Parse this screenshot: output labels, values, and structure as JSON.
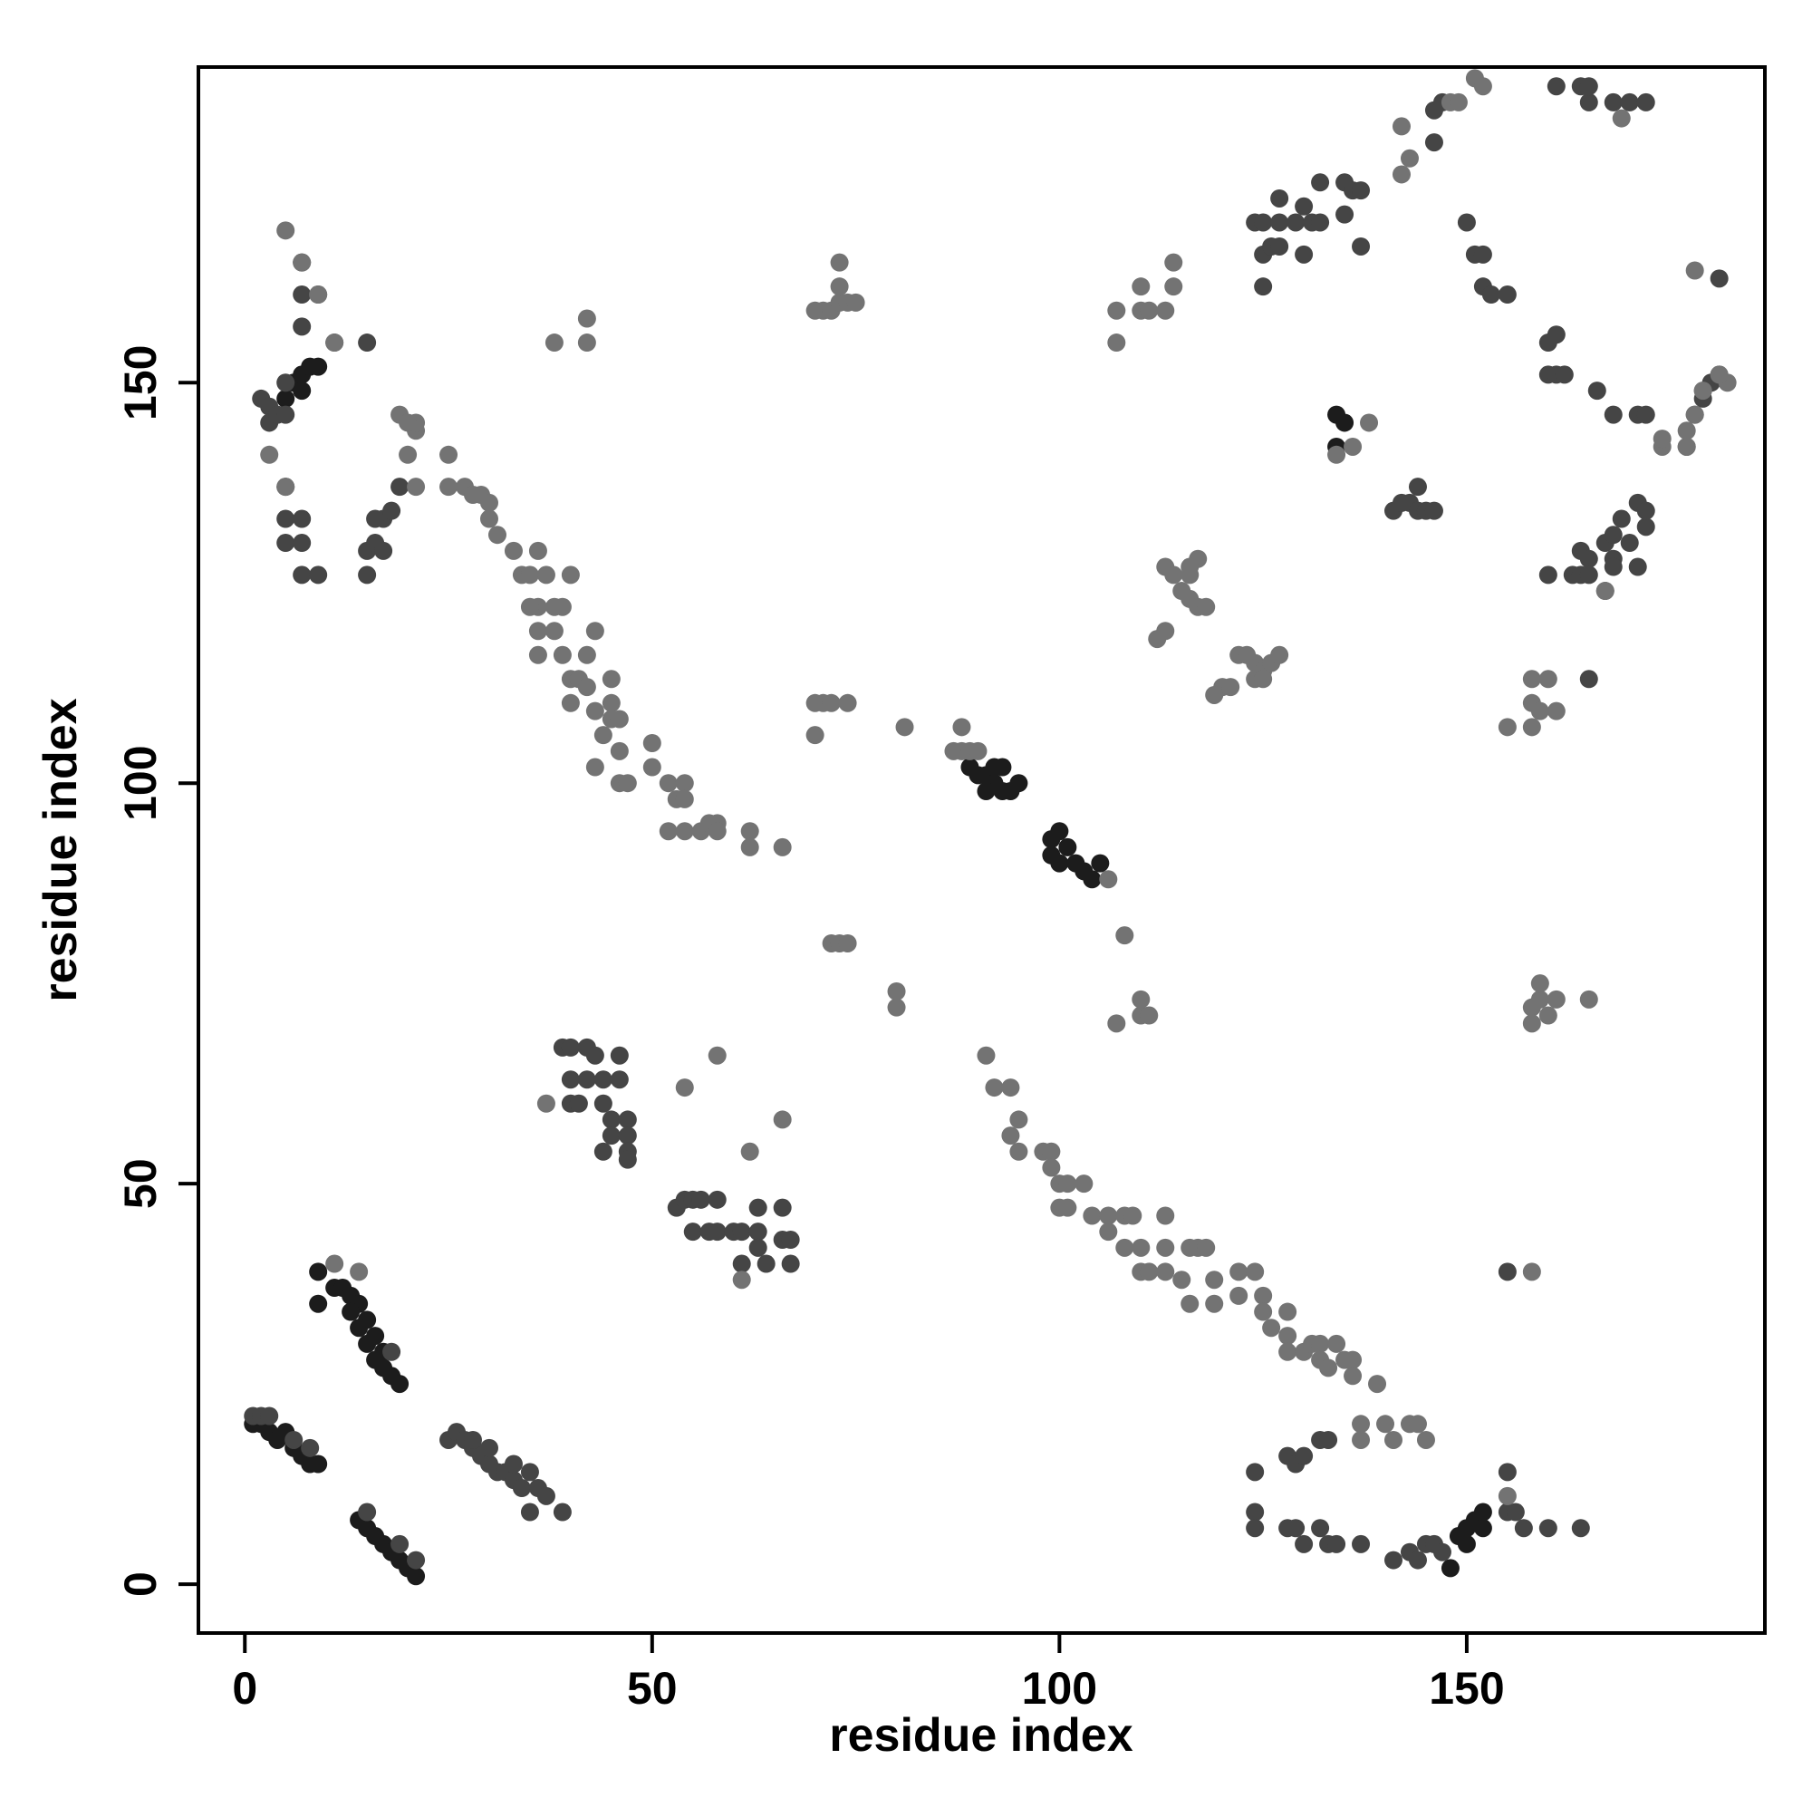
{
  "chart_data": {
    "type": "scatter",
    "x_label": "residue index",
    "y_label": "residue index",
    "xlim": [
      -5.7,
      186.6
    ],
    "ylim": [
      -6.1,
      189.4
    ],
    "xticks": [
      0,
      50,
      100,
      150
    ],
    "yticks": [
      0,
      50,
      100,
      150
    ],
    "grid": false,
    "series": [
      {
        "color": "#1c1c1c",
        "x": [
          1,
          2,
          3,
          4,
          5,
          6,
          7,
          8,
          9,
          9,
          9,
          11,
          12,
          13,
          14,
          15,
          16,
          17,
          17,
          18,
          19,
          13,
          14,
          15,
          16,
          14,
          15,
          16,
          17,
          18,
          19,
          20,
          21,
          89,
          90,
          91,
          92,
          93,
          94,
          95,
          91,
          92,
          93,
          99,
          100,
          101,
          102,
          103,
          104,
          105,
          99,
          100,
          149,
          150,
          151,
          152,
          152,
          148,
          150,
          134,
          135,
          134,
          5,
          6,
          7,
          8,
          9,
          7
        ],
        "y": [
          20,
          20,
          19,
          18,
          19,
          17,
          16,
          15,
          15,
          39,
          35,
          37,
          37,
          36,
          35,
          33,
          31,
          29,
          27,
          26,
          25,
          34,
          32,
          30,
          28,
          8,
          7,
          6,
          5,
          4,
          3,
          2,
          1,
          102,
          101,
          101,
          100,
          99,
          99,
          100,
          99,
          102,
          102,
          93,
          94,
          92,
          90,
          89,
          88,
          90,
          91,
          90,
          6,
          7,
          8,
          9,
          7,
          2,
          5,
          146,
          145,
          142,
          148,
          150,
          151,
          152,
          152,
          149
        ]
      },
      {
        "color": "#454545",
        "x": [
          1,
          2,
          3,
          6,
          8,
          18,
          21,
          15,
          19,
          25,
          26,
          27,
          28,
          29,
          30,
          31,
          32,
          33,
          34,
          35,
          36,
          37,
          28,
          30,
          33,
          35,
          39,
          39,
          40,
          42,
          43,
          46,
          40,
          42,
          44,
          46,
          40,
          41,
          44,
          45,
          47,
          45,
          47,
          44,
          47,
          47,
          53,
          54,
          55,
          56,
          58,
          55,
          58,
          60,
          61,
          63,
          63,
          63,
          64,
          66,
          66,
          67,
          67,
          61,
          57,
          124,
          128,
          129,
          130,
          132,
          133,
          124,
          124,
          128,
          129,
          130,
          132,
          133,
          134,
          137,
          141,
          143,
          144,
          145,
          146,
          147,
          155,
          156,
          155,
          157,
          160,
          164,
          155,
          2,
          3,
          3,
          4,
          5,
          5,
          7,
          7,
          7,
          5,
          5,
          7,
          5,
          7,
          7,
          9,
          15,
          15,
          16,
          17,
          18,
          19,
          16,
          17,
          9,
          11,
          15,
          124,
          125,
          125,
          125,
          126,
          127,
          127,
          127,
          129,
          130,
          130,
          131,
          132,
          132,
          135,
          135,
          136,
          137,
          137,
          141,
          142,
          143,
          144,
          144,
          145,
          146,
          146,
          146,
          147,
          150,
          151,
          152,
          152,
          153,
          155,
          160,
          160,
          161,
          161,
          162,
          160,
          163,
          164,
          164,
          165,
          165,
          165,
          167,
          167,
          168,
          168,
          168,
          168,
          169,
          170,
          171,
          172,
          172,
          171,
          171,
          172,
          161,
          164,
          165,
          165,
          168,
          170,
          172,
          177,
          178,
          179,
          179,
          180,
          181,
          181,
          166
        ],
        "y": [
          21,
          21,
          21,
          18,
          17,
          29,
          3,
          9,
          5,
          18,
          19,
          18,
          17,
          16,
          15,
          14,
          14,
          13,
          12,
          14,
          12,
          11,
          18,
          17,
          15,
          9,
          9,
          67,
          67,
          67,
          66,
          66,
          63,
          63,
          63,
          63,
          60,
          60,
          60,
          58,
          58,
          56,
          56,
          54,
          54,
          53,
          47,
          48,
          48,
          48,
          48,
          44,
          44,
          44,
          44,
          47,
          44,
          42,
          40,
          43,
          47,
          43,
          40,
          40,
          44,
          14,
          16,
          15,
          16,
          18,
          18,
          9,
          7,
          7,
          7,
          5,
          7,
          5,
          5,
          5,
          3,
          4,
          3,
          5,
          5,
          4,
          9,
          9,
          14,
          7,
          7,
          7,
          39,
          148,
          147,
          145,
          146,
          150,
          146,
          165,
          161,
          157,
          137,
          133,
          133,
          130,
          130,
          126,
          126,
          126,
          129,
          130,
          133,
          134,
          137,
          133,
          129,
          161,
          155,
          155,
          170,
          170,
          166,
          162,
          167,
          167,
          170,
          173,
          170,
          172,
          166,
          170,
          170,
          175,
          175,
          171,
          174,
          167,
          174,
          134,
          135,
          135,
          134,
          137,
          134,
          134,
          180,
          184,
          185,
          170,
          166,
          166,
          162,
          161,
          161,
          155,
          151,
          156,
          151,
          151,
          126,
          126,
          126,
          129,
          128,
          126,
          113,
          124,
          130,
          128,
          131,
          127,
          146,
          133,
          130,
          135,
          132,
          134,
          127,
          146,
          146,
          187,
          187,
          185,
          187,
          185,
          185,
          185,
          142,
          146,
          149,
          148,
          150,
          151,
          163,
          149
        ]
      },
      {
        "color": "#737373",
        "x": [
          11,
          14,
          37,
          54,
          58,
          62,
          66,
          61,
          91,
          92,
          94,
          95,
          94,
          95,
          98,
          99,
          99,
          100,
          101,
          100,
          101,
          103,
          104,
          106,
          106,
          108,
          108,
          109,
          110,
          110,
          111,
          113,
          113,
          113,
          115,
          116,
          117,
          118,
          116,
          119,
          119,
          122,
          122,
          124,
          125,
          125,
          126,
          128,
          128,
          128,
          130,
          131,
          132,
          132,
          133,
          134,
          135,
          136,
          136,
          139,
          137,
          137,
          140,
          141,
          143,
          144,
          145,
          155,
          158,
          5,
          7,
          9,
          11,
          3,
          5,
          20,
          21,
          19,
          21,
          21,
          20,
          25,
          25,
          27,
          28,
          29,
          30,
          30,
          31,
          33,
          34,
          35,
          36,
          37,
          36,
          35,
          36,
          36,
          38,
          39,
          40,
          38,
          39,
          40,
          41,
          40,
          42,
          43,
          42,
          43,
          45,
          45,
          45,
          46,
          44,
          43,
          46,
          46,
          47,
          50,
          50,
          52,
          53,
          54,
          54,
          52,
          54,
          56,
          57,
          58,
          58,
          62,
          62,
          66,
          38,
          42,
          42,
          70,
          70,
          71,
          72,
          74,
          72,
          73,
          74,
          80,
          80,
          81,
          87,
          88,
          88,
          89,
          90,
          106,
          108,
          107,
          110,
          110,
          111,
          70,
          71,
          72,
          73,
          74,
          75,
          73,
          73,
          107,
          107,
          110,
          110,
          111,
          113,
          114,
          114,
          112,
          113,
          113,
          114,
          115,
          116,
          116,
          117,
          117,
          118,
          116,
          120,
          121,
          119,
          122,
          123,
          124,
          125,
          126,
          127,
          124,
          125,
          142,
          143,
          142,
          148,
          149,
          151,
          152,
          158,
          158,
          158,
          159,
          161,
          155,
          158,
          158,
          159,
          159,
          160,
          161,
          165,
          167,
          169,
          174,
          174,
          177,
          177,
          178,
          179,
          182,
          181,
          178,
          136,
          138,
          134,
          160
        ],
        "y": [
          40,
          39,
          60,
          62,
          66,
          54,
          58,
          38,
          66,
          62,
          62,
          58,
          56,
          54,
          54,
          54,
          52,
          50,
          50,
          47,
          47,
          50,
          46,
          46,
          44,
          46,
          42,
          46,
          42,
          39,
          39,
          46,
          42,
          39,
          38,
          42,
          42,
          42,
          35,
          38,
          35,
          39,
          36,
          39,
          36,
          34,
          32,
          34,
          31,
          29,
          29,
          30,
          30,
          28,
          27,
          30,
          28,
          28,
          26,
          25,
          20,
          18,
          20,
          18,
          20,
          20,
          18,
          11,
          39,
          169,
          165,
          161,
          155,
          141,
          137,
          141,
          144,
          146,
          145,
          137,
          145,
          141,
          137,
          137,
          136,
          136,
          135,
          133,
          131,
          129,
          126,
          126,
          129,
          126,
          122,
          122,
          119,
          116,
          122,
          122,
          126,
          119,
          116,
          113,
          113,
          110,
          116,
          119,
          112,
          109,
          113,
          110,
          108,
          108,
          106,
          102,
          104,
          100,
          100,
          105,
          102,
          100,
          98,
          100,
          98,
          94,
          94,
          94,
          95,
          95,
          94,
          94,
          92,
          92,
          155,
          155,
          158,
          106,
          110,
          110,
          110,
          110,
          80,
          80,
          80,
          72,
          74,
          107,
          104,
          107,
          104,
          104,
          104,
          88,
          81,
          70,
          71,
          73,
          71,
          159,
          159,
          159,
          160,
          160,
          160,
          162,
          165,
          155,
          159,
          162,
          159,
          159,
          159,
          162,
          165,
          118,
          119,
          127,
          126,
          124,
          123,
          126,
          128,
          122,
          122,
          127,
          112,
          112,
          111,
          116,
          116,
          115,
          114,
          115,
          116,
          113,
          113,
          176,
          178,
          182,
          185,
          185,
          188,
          187,
          113,
          110,
          107,
          109,
          109,
          107,
          72,
          70,
          73,
          75,
          71,
          73,
          73,
          124,
          183,
          142,
          143,
          142,
          144,
          146,
          149,
          150,
          151,
          164,
          142,
          145,
          141,
          113
        ]
      }
    ]
  }
}
